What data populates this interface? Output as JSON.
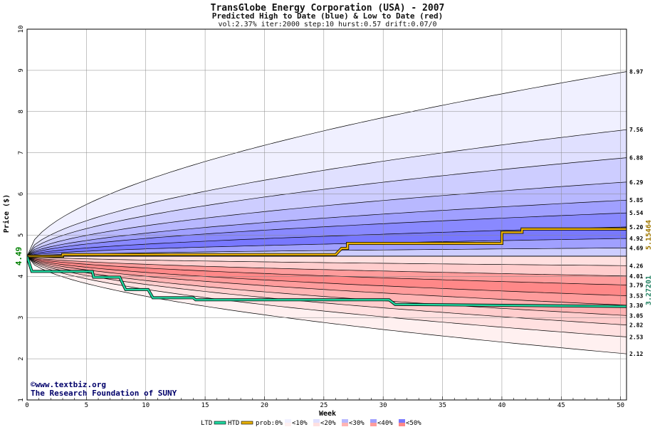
{
  "chart_data": {
    "type": "area",
    "title": "TransGlobe Energy Corporation (USA) - 2007",
    "subtitle": "Predicted High to Date (blue) &  Low to Date (red)",
    "params": "vol:2.37% iter:2000 step:10 hurst:0.57 drift:0.07/0",
    "xlabel": "Week",
    "ylabel": "Price ($)",
    "xlim": [
      0,
      50.5
    ],
    "ylim": [
      1,
      10
    ],
    "x_ticks": [
      0,
      5,
      10,
      15,
      20,
      25,
      30,
      35,
      40,
      45,
      50
    ],
    "y_ticks": [
      1,
      2,
      3,
      4,
      5,
      6,
      7,
      8,
      9,
      10
    ],
    "grid": true,
    "start_price": 4.49,
    "start_label": "4.49",
    "upper_bands": [
      {
        "end": 8.97,
        "label": "8.97",
        "fill": "#f0f0ff"
      },
      {
        "end": 7.56,
        "label": "7.56",
        "fill": "#e0e0ff"
      },
      {
        "end": 6.88,
        "label": "6.88",
        "fill": "#cdcdff"
      },
      {
        "end": 6.29,
        "label": "6.29",
        "fill": "#b8b8ff"
      },
      {
        "end": 5.85,
        "label": "5.85",
        "fill": "#a0a0ff"
      },
      {
        "end": 5.54,
        "label": "5.54",
        "fill": "#8989ff"
      },
      {
        "end": 5.2,
        "label": "5.20",
        "fill": "#7878ff"
      },
      {
        "end": 4.92,
        "label": "4.92",
        "fill": "#a0a0ff"
      },
      {
        "end": 4.69,
        "label": "4.69",
        "fill": "#cdcdff"
      }
    ],
    "lower_bands": [
      {
        "end": 2.12,
        "label": "2.12",
        "fill": "#fff0f0"
      },
      {
        "end": 2.53,
        "label": "2.53",
        "fill": "#ffe0e0"
      },
      {
        "end": 2.82,
        "label": "2.82",
        "fill": "#ffcdcd"
      },
      {
        "end": 3.05,
        "label": "3.05",
        "fill": "#ffb4b4"
      },
      {
        "end": 3.3,
        "label": "3.30",
        "fill": "#ff9c9c"
      },
      {
        "end": 3.53,
        "label": "3.53",
        "fill": "#ff8888"
      },
      {
        "end": 3.79,
        "label": "3.79",
        "fill": "#ff9c9c"
      },
      {
        "end": 4.01,
        "label": "4.01",
        "fill": "#ffcdcd"
      },
      {
        "end": 4.26,
        "label": "4.26",
        "fill": "#ffe0e0"
      }
    ],
    "series": [
      {
        "name": "HTD",
        "color": "#e8b000",
        "end_label": "5.15464",
        "points": [
          [
            0,
            4.49
          ],
          [
            3,
            4.49
          ],
          [
            3,
            4.53
          ],
          [
            26,
            4.53
          ],
          [
            26.5,
            4.68
          ],
          [
            27,
            4.68
          ],
          [
            27,
            4.8
          ],
          [
            40,
            4.8
          ],
          [
            40,
            5.07
          ],
          [
            41.7,
            5.07
          ],
          [
            41.7,
            5.15
          ],
          [
            50.5,
            5.15
          ]
        ]
      },
      {
        "name": "LTD",
        "color": "#20d8a0",
        "end_label": "3.27201",
        "points": [
          [
            0,
            4.49
          ],
          [
            0.4,
            4.12
          ],
          [
            5.5,
            4.12
          ],
          [
            5.6,
            3.98
          ],
          [
            7.8,
            3.98
          ],
          [
            8.3,
            3.68
          ],
          [
            10.2,
            3.68
          ],
          [
            10.6,
            3.48
          ],
          [
            14,
            3.48
          ],
          [
            14.2,
            3.43
          ],
          [
            30.5,
            3.43
          ],
          [
            31,
            3.32
          ],
          [
            50.5,
            3.27
          ]
        ]
      }
    ]
  },
  "credits": {
    "line1": "©www.textbiz.org",
    "line2": "The Research Foundation of SUNY"
  },
  "legend": {
    "ltd": "LTD",
    "htd": "HTD",
    "prob": "prob:0%",
    "items": [
      "<10%",
      "<20%",
      "<30%",
      "<40%",
      "<50%"
    ],
    "colors_blue": [
      "#f0f0ff",
      "#e0e0ff",
      "#b8b8ff",
      "#a0a0ff",
      "#7878ff"
    ],
    "colors_red": [
      "#fff0f0",
      "#ffe0e0",
      "#ffb4b4",
      "#ff9c9c",
      "#ff8888"
    ]
  }
}
